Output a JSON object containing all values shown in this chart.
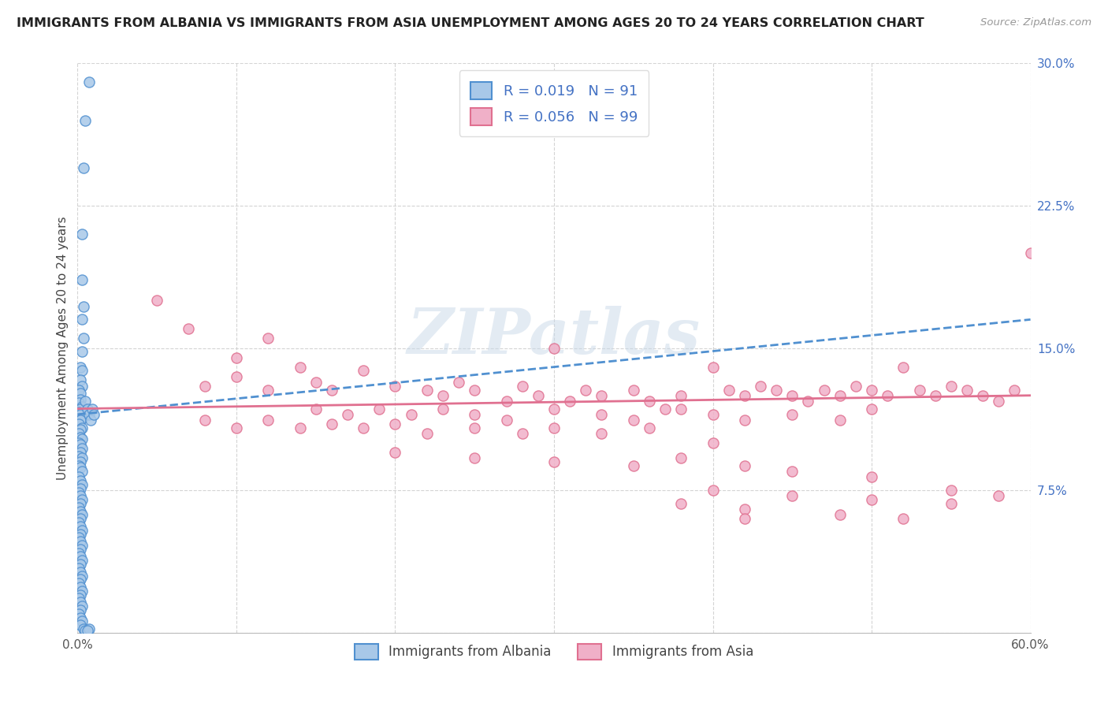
{
  "title": "IMMIGRANTS FROM ALBANIA VS IMMIGRANTS FROM ASIA UNEMPLOYMENT AMONG AGES 20 TO 24 YEARS CORRELATION CHART",
  "source": "Source: ZipAtlas.com",
  "ylabel": "Unemployment Among Ages 20 to 24 years",
  "xlim": [
    0.0,
    0.6
  ],
  "ylim": [
    0.0,
    0.3
  ],
  "xticks": [
    0.0,
    0.1,
    0.2,
    0.3,
    0.4,
    0.5,
    0.6
  ],
  "xticklabels": [
    "0.0%",
    "",
    "",
    "",
    "",
    "",
    "60.0%"
  ],
  "yticks": [
    0.0,
    0.075,
    0.15,
    0.225,
    0.3
  ],
  "yticklabels": [
    "",
    "7.5%",
    "15.0%",
    "22.5%",
    "30.0%"
  ],
  "albania_color": "#a8c8e8",
  "asia_color": "#f0b0c8",
  "albania_edge": "#5090d0",
  "asia_edge": "#e07090",
  "r_albania": 0.019,
  "n_albania": 91,
  "r_asia": 0.056,
  "n_asia": 99,
  "legend_label_albania": "Immigrants from Albania",
  "legend_label_asia": "Immigrants from Asia",
  "watermark_text": "ZIPatlas",
  "background_color": "#ffffff",
  "grid_color": "#d0d0d0",
  "albania_trend_x": [
    0.0,
    0.6
  ],
  "albania_trend_y": [
    0.115,
    0.165
  ],
  "asia_trend_x": [
    0.0,
    0.6
  ],
  "asia_trend_y": [
    0.118,
    0.125
  ],
  "albania_scatter": [
    [
      0.007,
      0.29
    ],
    [
      0.005,
      0.27
    ],
    [
      0.004,
      0.245
    ],
    [
      0.003,
      0.21
    ],
    [
      0.003,
      0.186
    ],
    [
      0.004,
      0.172
    ],
    [
      0.003,
      0.165
    ],
    [
      0.004,
      0.155
    ],
    [
      0.003,
      0.148
    ],
    [
      0.002,
      0.14
    ],
    [
      0.003,
      0.138
    ],
    [
      0.002,
      0.133
    ],
    [
      0.003,
      0.13
    ],
    [
      0.001,
      0.128
    ],
    [
      0.002,
      0.126
    ],
    [
      0.002,
      0.123
    ],
    [
      0.001,
      0.121
    ],
    [
      0.003,
      0.119
    ],
    [
      0.002,
      0.118
    ],
    [
      0.001,
      0.116
    ],
    [
      0.002,
      0.115
    ],
    [
      0.003,
      0.113
    ],
    [
      0.002,
      0.112
    ],
    [
      0.001,
      0.11
    ],
    [
      0.003,
      0.108
    ],
    [
      0.002,
      0.107
    ],
    [
      0.001,
      0.105
    ],
    [
      0.002,
      0.103
    ],
    [
      0.003,
      0.102
    ],
    [
      0.001,
      0.1
    ],
    [
      0.002,
      0.099
    ],
    [
      0.003,
      0.097
    ],
    [
      0.002,
      0.095
    ],
    [
      0.001,
      0.093
    ],
    [
      0.003,
      0.092
    ],
    [
      0.002,
      0.09
    ],
    [
      0.001,
      0.088
    ],
    [
      0.002,
      0.087
    ],
    [
      0.003,
      0.085
    ],
    [
      0.001,
      0.082
    ],
    [
      0.002,
      0.08
    ],
    [
      0.003,
      0.078
    ],
    [
      0.002,
      0.076
    ],
    [
      0.001,
      0.074
    ],
    [
      0.002,
      0.072
    ],
    [
      0.003,
      0.07
    ],
    [
      0.002,
      0.068
    ],
    [
      0.001,
      0.066
    ],
    [
      0.002,
      0.064
    ],
    [
      0.003,
      0.062
    ],
    [
      0.002,
      0.06
    ],
    [
      0.001,
      0.058
    ],
    [
      0.002,
      0.056
    ],
    [
      0.003,
      0.054
    ],
    [
      0.002,
      0.052
    ],
    [
      0.001,
      0.05
    ],
    [
      0.002,
      0.048
    ],
    [
      0.003,
      0.046
    ],
    [
      0.002,
      0.044
    ],
    [
      0.001,
      0.042
    ],
    [
      0.002,
      0.04
    ],
    [
      0.003,
      0.038
    ],
    [
      0.002,
      0.036
    ],
    [
      0.001,
      0.034
    ],
    [
      0.002,
      0.032
    ],
    [
      0.003,
      0.03
    ],
    [
      0.002,
      0.028
    ],
    [
      0.001,
      0.026
    ],
    [
      0.002,
      0.024
    ],
    [
      0.003,
      0.022
    ],
    [
      0.002,
      0.02
    ],
    [
      0.001,
      0.018
    ],
    [
      0.002,
      0.016
    ],
    [
      0.003,
      0.014
    ],
    [
      0.002,
      0.012
    ],
    [
      0.001,
      0.01
    ],
    [
      0.002,
      0.008
    ],
    [
      0.003,
      0.006
    ],
    [
      0.002,
      0.004
    ],
    [
      0.004,
      0.002
    ],
    [
      0.005,
      0.001
    ],
    [
      0.007,
      0.002
    ],
    [
      0.006,
      0.001
    ],
    [
      0.005,
      0.122
    ],
    [
      0.006,
      0.118
    ],
    [
      0.007,
      0.115
    ],
    [
      0.008,
      0.112
    ],
    [
      0.009,
      0.118
    ],
    [
      0.01,
      0.115
    ]
  ],
  "asia_scatter": [
    [
      0.05,
      0.175
    ],
    [
      0.07,
      0.16
    ],
    [
      0.1,
      0.145
    ],
    [
      0.12,
      0.155
    ],
    [
      0.08,
      0.13
    ],
    [
      0.1,
      0.135
    ],
    [
      0.12,
      0.128
    ],
    [
      0.14,
      0.14
    ],
    [
      0.15,
      0.132
    ],
    [
      0.16,
      0.128
    ],
    [
      0.18,
      0.138
    ],
    [
      0.2,
      0.13
    ],
    [
      0.22,
      0.128
    ],
    [
      0.23,
      0.125
    ],
    [
      0.24,
      0.132
    ],
    [
      0.25,
      0.128
    ],
    [
      0.27,
      0.122
    ],
    [
      0.28,
      0.13
    ],
    [
      0.29,
      0.125
    ],
    [
      0.3,
      0.15
    ],
    [
      0.31,
      0.122
    ],
    [
      0.32,
      0.128
    ],
    [
      0.33,
      0.125
    ],
    [
      0.35,
      0.128
    ],
    [
      0.36,
      0.122
    ],
    [
      0.37,
      0.118
    ],
    [
      0.38,
      0.125
    ],
    [
      0.4,
      0.14
    ],
    [
      0.41,
      0.128
    ],
    [
      0.42,
      0.125
    ],
    [
      0.43,
      0.13
    ],
    [
      0.44,
      0.128
    ],
    [
      0.45,
      0.125
    ],
    [
      0.46,
      0.122
    ],
    [
      0.47,
      0.128
    ],
    [
      0.48,
      0.125
    ],
    [
      0.49,
      0.13
    ],
    [
      0.5,
      0.128
    ],
    [
      0.51,
      0.125
    ],
    [
      0.52,
      0.14
    ],
    [
      0.53,
      0.128
    ],
    [
      0.54,
      0.125
    ],
    [
      0.55,
      0.13
    ],
    [
      0.56,
      0.128
    ],
    [
      0.57,
      0.125
    ],
    [
      0.58,
      0.122
    ],
    [
      0.59,
      0.128
    ],
    [
      0.6,
      0.2
    ],
    [
      0.15,
      0.118
    ],
    [
      0.17,
      0.115
    ],
    [
      0.19,
      0.118
    ],
    [
      0.21,
      0.115
    ],
    [
      0.23,
      0.118
    ],
    [
      0.25,
      0.115
    ],
    [
      0.27,
      0.112
    ],
    [
      0.3,
      0.118
    ],
    [
      0.33,
      0.115
    ],
    [
      0.35,
      0.112
    ],
    [
      0.38,
      0.118
    ],
    [
      0.4,
      0.115
    ],
    [
      0.42,
      0.112
    ],
    [
      0.45,
      0.115
    ],
    [
      0.48,
      0.112
    ],
    [
      0.5,
      0.118
    ],
    [
      0.08,
      0.112
    ],
    [
      0.1,
      0.108
    ],
    [
      0.12,
      0.112
    ],
    [
      0.14,
      0.108
    ],
    [
      0.16,
      0.11
    ],
    [
      0.18,
      0.108
    ],
    [
      0.2,
      0.11
    ],
    [
      0.22,
      0.105
    ],
    [
      0.25,
      0.108
    ],
    [
      0.28,
      0.105
    ],
    [
      0.3,
      0.108
    ],
    [
      0.33,
      0.105
    ],
    [
      0.36,
      0.108
    ],
    [
      0.4,
      0.1
    ],
    [
      0.2,
      0.095
    ],
    [
      0.25,
      0.092
    ],
    [
      0.3,
      0.09
    ],
    [
      0.35,
      0.088
    ],
    [
      0.38,
      0.092
    ],
    [
      0.42,
      0.088
    ],
    [
      0.45,
      0.085
    ],
    [
      0.5,
      0.082
    ],
    [
      0.4,
      0.075
    ],
    [
      0.45,
      0.072
    ],
    [
      0.5,
      0.07
    ],
    [
      0.55,
      0.068
    ],
    [
      0.38,
      0.068
    ],
    [
      0.42,
      0.065
    ],
    [
      0.48,
      0.062
    ],
    [
      0.52,
      0.06
    ],
    [
      0.55,
      0.075
    ],
    [
      0.58,
      0.072
    ],
    [
      0.42,
      0.06
    ]
  ]
}
